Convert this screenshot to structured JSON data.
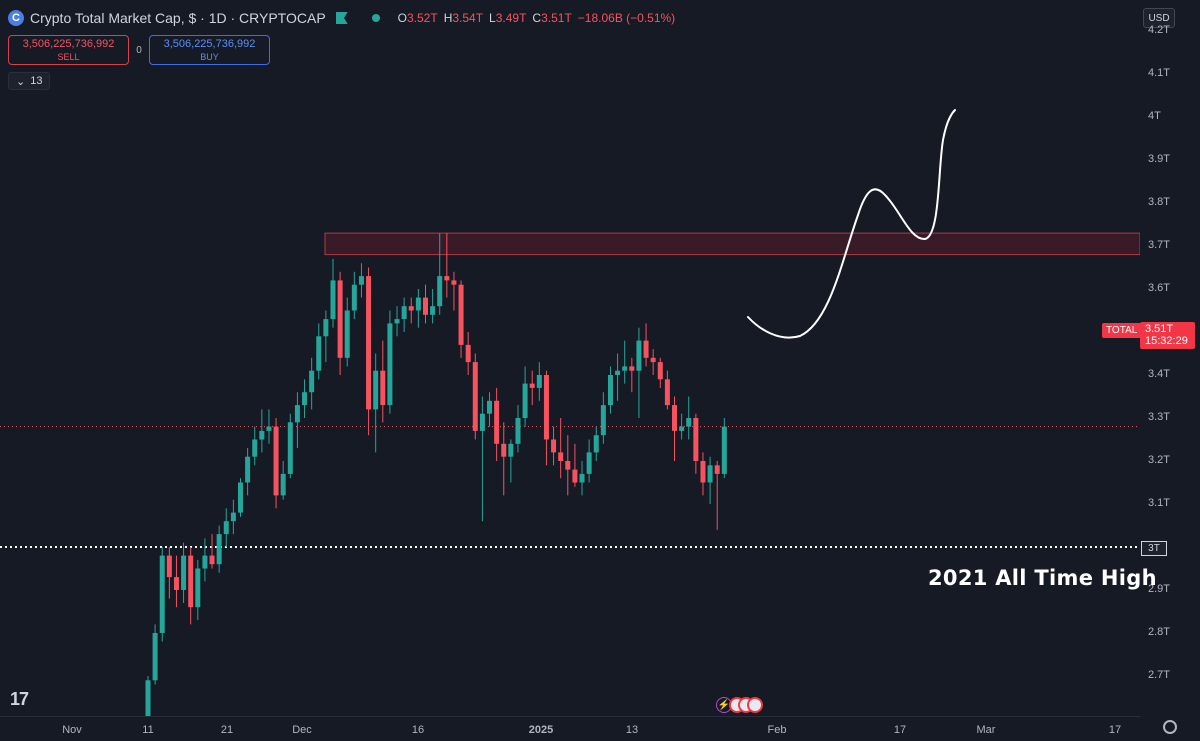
{
  "header": {
    "logo_glyph": "C",
    "title": "Crypto Total Market Cap, $ · 1D · CRYPTOCAP",
    "ohlc": [
      {
        "k": "O",
        "v": "3.52T"
      },
      {
        "k": "H",
        "v": "3.54T"
      },
      {
        "k": "L",
        "v": "3.49T"
      },
      {
        "k": "C",
        "v": "3.51T"
      }
    ],
    "change": "−18.06B (−0.51%)"
  },
  "trade": {
    "sell_value": "3,506,225,736,992",
    "sell_label": "SELL",
    "spread": "0",
    "buy_value": "3,506,225,736,992",
    "buy_label": "BUY"
  },
  "indicators": {
    "chevron": "⌄",
    "count": "13"
  },
  "currency": "USD",
  "price_axis": {
    "ticks": [
      "4.2T",
      "4.1T",
      "4T",
      "3.9T",
      "3.8T",
      "3.7T",
      "3.6T",
      "3.5T",
      "3.4T",
      "3.3T",
      "3.2T",
      "3.1T",
      "3T",
      "2.9T",
      "2.8T",
      "2.7T"
    ],
    "last_price": "3.51T",
    "countdown": "15:32:29",
    "symbol_tag": "TOTAL",
    "ath_tag": "3T"
  },
  "time_axis": [
    "Nov",
    "11",
    "21",
    "Dec",
    "16",
    "2025",
    "13",
    "Feb",
    "17",
    "Mar",
    "17"
  ],
  "annotations": {
    "ath_label": "2021 All Time High",
    "resistance_zone": [
      3.68,
      3.73
    ],
    "ath_level": 3.0
  },
  "tv_logo": "17",
  "colors": {
    "background": "#161a25",
    "up": "#26a69a",
    "down": "#f7525f",
    "zone": "#7a1e2a",
    "ath_line": "#ffffff"
  },
  "chart_data": {
    "type": "candlestick",
    "series": [
      {
        "date": "2024-11-11",
        "open": 2.6,
        "high": 2.7,
        "low": 2.58,
        "close": 2.69
      },
      {
        "date": "2024-11-12",
        "open": 2.69,
        "high": 2.82,
        "low": 2.68,
        "close": 2.8
      },
      {
        "date": "2024-11-13",
        "open": 2.8,
        "high": 3.0,
        "low": 2.78,
        "close": 2.98
      },
      {
        "date": "2024-11-14",
        "open": 2.98,
        "high": 3.0,
        "low": 2.88,
        "close": 2.93
      },
      {
        "date": "2024-11-15",
        "open": 2.93,
        "high": 2.98,
        "low": 2.86,
        "close": 2.9
      },
      {
        "date": "2024-11-16",
        "open": 2.9,
        "high": 3.01,
        "low": 2.87,
        "close": 2.98
      },
      {
        "date": "2024-11-17",
        "open": 2.98,
        "high": 3.0,
        "low": 2.82,
        "close": 2.86
      },
      {
        "date": "2024-11-18",
        "open": 2.86,
        "high": 2.97,
        "low": 2.83,
        "close": 2.95
      },
      {
        "date": "2024-11-19",
        "open": 2.95,
        "high": 3.02,
        "low": 2.92,
        "close": 2.98
      },
      {
        "date": "2024-11-20",
        "open": 2.98,
        "high": 3.03,
        "low": 2.95,
        "close": 2.96
      },
      {
        "date": "2024-11-21",
        "open": 2.96,
        "high": 3.05,
        "low": 2.94,
        "close": 3.03
      },
      {
        "date": "2024-11-22",
        "open": 3.03,
        "high": 3.09,
        "low": 3.0,
        "close": 3.06
      },
      {
        "date": "2024-11-23",
        "open": 3.06,
        "high": 3.11,
        "low": 3.03,
        "close": 3.08
      },
      {
        "date": "2024-11-24",
        "open": 3.08,
        "high": 3.16,
        "low": 3.07,
        "close": 3.15
      },
      {
        "date": "2024-11-25",
        "open": 3.15,
        "high": 3.23,
        "low": 3.12,
        "close": 3.21
      },
      {
        "date": "2024-11-26",
        "open": 3.21,
        "high": 3.28,
        "low": 3.19,
        "close": 3.25
      },
      {
        "date": "2024-11-27",
        "open": 3.25,
        "high": 3.32,
        "low": 3.22,
        "close": 3.27
      },
      {
        "date": "2024-11-28",
        "open": 3.27,
        "high": 3.32,
        "low": 3.24,
        "close": 3.28
      },
      {
        "date": "2024-11-29",
        "open": 3.28,
        "high": 3.3,
        "low": 3.09,
        "close": 3.12
      },
      {
        "date": "2024-11-30",
        "open": 3.12,
        "high": 3.2,
        "low": 3.11,
        "close": 3.17
      },
      {
        "date": "2024-12-01",
        "open": 3.17,
        "high": 3.31,
        "low": 3.16,
        "close": 3.29
      },
      {
        "date": "2024-12-02",
        "open": 3.29,
        "high": 3.36,
        "low": 3.23,
        "close": 3.33
      },
      {
        "date": "2024-12-03",
        "open": 3.33,
        "high": 3.39,
        "low": 3.3,
        "close": 3.36
      },
      {
        "date": "2024-12-04",
        "open": 3.36,
        "high": 3.44,
        "low": 3.32,
        "close": 3.41
      },
      {
        "date": "2024-12-05",
        "open": 3.41,
        "high": 3.52,
        "low": 3.39,
        "close": 3.49
      },
      {
        "date": "2024-12-06",
        "open": 3.49,
        "high": 3.55,
        "low": 3.43,
        "close": 3.53
      },
      {
        "date": "2024-12-07",
        "open": 3.53,
        "high": 3.67,
        "low": 3.51,
        "close": 3.62
      },
      {
        "date": "2024-12-08",
        "open": 3.62,
        "high": 3.64,
        "low": 3.4,
        "close": 3.44
      },
      {
        "date": "2024-12-09",
        "open": 3.44,
        "high": 3.58,
        "low": 3.42,
        "close": 3.55
      },
      {
        "date": "2024-12-10",
        "open": 3.55,
        "high": 3.64,
        "low": 3.53,
        "close": 3.61
      },
      {
        "date": "2024-12-11",
        "open": 3.61,
        "high": 3.66,
        "low": 3.58,
        "close": 3.63
      },
      {
        "date": "2024-12-12",
        "open": 3.63,
        "high": 3.65,
        "low": 3.26,
        "close": 3.32
      },
      {
        "date": "2024-12-13",
        "open": 3.32,
        "high": 3.45,
        "low": 3.22,
        "close": 3.41
      },
      {
        "date": "2024-12-14",
        "open": 3.41,
        "high": 3.48,
        "low": 3.29,
        "close": 3.33
      },
      {
        "date": "2024-12-15",
        "open": 3.33,
        "high": 3.55,
        "low": 3.31,
        "close": 3.52
      },
      {
        "date": "2024-12-16",
        "open": 3.52,
        "high": 3.56,
        "low": 3.49,
        "close": 3.53
      },
      {
        "date": "2024-12-17",
        "open": 3.53,
        "high": 3.58,
        "low": 3.5,
        "close": 3.56
      },
      {
        "date": "2024-12-18",
        "open": 3.56,
        "high": 3.58,
        "low": 3.52,
        "close": 3.55
      },
      {
        "date": "2024-12-19",
        "open": 3.55,
        "high": 3.6,
        "low": 3.51,
        "close": 3.58
      },
      {
        "date": "2024-12-20",
        "open": 3.58,
        "high": 3.61,
        "low": 3.52,
        "close": 3.54
      },
      {
        "date": "2024-12-21",
        "open": 3.54,
        "high": 3.6,
        "low": 3.52,
        "close": 3.56
      },
      {
        "date": "2024-12-22",
        "open": 3.56,
        "high": 3.73,
        "low": 3.54,
        "close": 3.63
      },
      {
        "date": "2024-12-23",
        "open": 3.63,
        "high": 3.73,
        "low": 3.58,
        "close": 3.62
      },
      {
        "date": "2024-12-24",
        "open": 3.62,
        "high": 3.64,
        "low": 3.55,
        "close": 3.61
      },
      {
        "date": "2024-12-25",
        "open": 3.61,
        "high": 3.62,
        "low": 3.44,
        "close": 3.47
      },
      {
        "date": "2024-12-26",
        "open": 3.47,
        "high": 3.5,
        "low": 3.4,
        "close": 3.43
      },
      {
        "date": "2024-12-27",
        "open": 3.43,
        "high": 3.45,
        "low": 3.25,
        "close": 3.27
      },
      {
        "date": "2024-12-28",
        "open": 3.27,
        "high": 3.35,
        "low": 3.06,
        "close": 3.31
      },
      {
        "date": "2024-12-29",
        "open": 3.31,
        "high": 3.36,
        "low": 3.28,
        "close": 3.34
      },
      {
        "date": "2024-12-30",
        "open": 3.34,
        "high": 3.37,
        "low": 3.2,
        "close": 3.24
      },
      {
        "date": "2024-12-31",
        "open": 3.24,
        "high": 3.29,
        "low": 3.12,
        "close": 3.21
      },
      {
        "date": "2025-01-01",
        "open": 3.21,
        "high": 3.25,
        "low": 3.15,
        "close": 3.24
      },
      {
        "date": "2025-01-02",
        "open": 3.24,
        "high": 3.33,
        "low": 3.22,
        "close": 3.3
      },
      {
        "date": "2025-01-03",
        "open": 3.3,
        "high": 3.42,
        "low": 3.28,
        "close": 3.38
      },
      {
        "date": "2025-01-04",
        "open": 3.38,
        "high": 3.41,
        "low": 3.33,
        "close": 3.37
      },
      {
        "date": "2025-01-05",
        "open": 3.37,
        "high": 3.43,
        "low": 3.34,
        "close": 3.4
      },
      {
        "date": "2025-01-06",
        "open": 3.4,
        "high": 3.41,
        "low": 3.19,
        "close": 3.25
      },
      {
        "date": "2025-01-07",
        "open": 3.25,
        "high": 3.28,
        "low": 3.19,
        "close": 3.22
      },
      {
        "date": "2025-01-08",
        "open": 3.22,
        "high": 3.3,
        "low": 3.16,
        "close": 3.2
      },
      {
        "date": "2025-01-09",
        "open": 3.2,
        "high": 3.26,
        "low": 3.12,
        "close": 3.18
      },
      {
        "date": "2025-01-10",
        "open": 3.18,
        "high": 3.24,
        "low": 3.14,
        "close": 3.15
      },
      {
        "date": "2025-01-11",
        "open": 3.15,
        "high": 3.2,
        "low": 3.12,
        "close": 3.17
      },
      {
        "date": "2025-01-12",
        "open": 3.17,
        "high": 3.25,
        "low": 3.15,
        "close": 3.22
      },
      {
        "date": "2025-01-13",
        "open": 3.22,
        "high": 3.28,
        "low": 3.2,
        "close": 3.26
      },
      {
        "date": "2025-01-14",
        "open": 3.26,
        "high": 3.36,
        "low": 3.24,
        "close": 3.33
      },
      {
        "date": "2025-01-15",
        "open": 3.33,
        "high": 3.42,
        "low": 3.31,
        "close": 3.4
      },
      {
        "date": "2025-01-16",
        "open": 3.4,
        "high": 3.45,
        "low": 3.34,
        "close": 3.41
      },
      {
        "date": "2025-01-17",
        "open": 3.41,
        "high": 3.48,
        "low": 3.38,
        "close": 3.42
      },
      {
        "date": "2025-01-18",
        "open": 3.42,
        "high": 3.44,
        "low": 3.36,
        "close": 3.41
      },
      {
        "date": "2025-01-19",
        "open": 3.41,
        "high": 3.51,
        "low": 3.3,
        "close": 3.48
      },
      {
        "date": "2025-01-20",
        "open": 3.48,
        "high": 3.52,
        "low": 3.42,
        "close": 3.44
      },
      {
        "date": "2025-01-21",
        "open": 3.44,
        "high": 3.46,
        "low": 3.4,
        "close": 3.43
      },
      {
        "date": "2025-01-22",
        "open": 3.43,
        "high": 3.44,
        "low": 3.37,
        "close": 3.39
      },
      {
        "date": "2025-01-23",
        "open": 3.39,
        "high": 3.41,
        "low": 3.32,
        "close": 3.33
      },
      {
        "date": "2025-01-24",
        "open": 3.33,
        "high": 3.35,
        "low": 3.2,
        "close": 3.27
      },
      {
        "date": "2025-01-25",
        "open": 3.27,
        "high": 3.31,
        "low": 3.25,
        "close": 3.28
      },
      {
        "date": "2025-01-26",
        "open": 3.28,
        "high": 3.35,
        "low": 3.25,
        "close": 3.3
      },
      {
        "date": "2025-01-27",
        "open": 3.3,
        "high": 3.31,
        "low": 3.17,
        "close": 3.2
      },
      {
        "date": "2025-01-28",
        "open": 3.2,
        "high": 3.22,
        "low": 3.12,
        "close": 3.15
      },
      {
        "date": "2025-01-29",
        "open": 3.15,
        "high": 3.21,
        "low": 3.1,
        "close": 3.19
      },
      {
        "date": "2025-01-30",
        "open": 3.19,
        "high": 3.2,
        "low": 3.04,
        "close": 3.17
      },
      {
        "date": "2025-01-31",
        "open": 3.17,
        "high": 3.3,
        "low": 3.16,
        "close": 3.28
      }
    ]
  }
}
